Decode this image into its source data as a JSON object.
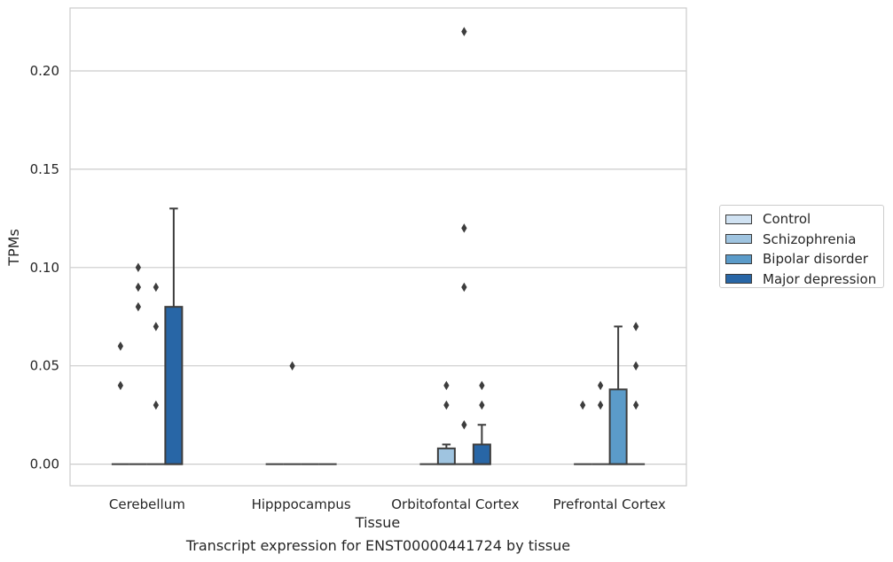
{
  "chart_data": {
    "type": "box",
    "title": "Transcript expression for ENST00000441724 by tissue",
    "xlabel": "Tissue",
    "ylabel": "TPMs",
    "ylim": [
      -0.011,
      0.232
    ],
    "yticks": [
      0.0,
      0.05,
      0.1,
      0.15,
      0.2
    ],
    "ytick_labels": [
      "0.00",
      "0.05",
      "0.10",
      "0.15",
      "0.20"
    ],
    "categories": [
      "Cerebellum",
      "Hipppocampus",
      "Orbitofontal Cortex",
      "Prefrontal Cortex"
    ],
    "grid": true,
    "legend_position": "right, outside plot",
    "series": [
      {
        "name": "Control",
        "color": "#d0e2f2",
        "boxes": [
          {
            "category": "Cerebellum",
            "q1": 0,
            "median": 0,
            "q3": 0,
            "whisker_low": 0,
            "whisker_high": 0,
            "outliers": [
              0.06,
              0.04
            ]
          },
          {
            "category": "Hipppocampus",
            "q1": 0,
            "median": 0,
            "q3": 0,
            "whisker_low": 0,
            "whisker_high": 0,
            "outliers": []
          },
          {
            "category": "Orbitofontal Cortex",
            "q1": 0,
            "median": 0,
            "q3": 0,
            "whisker_low": 0,
            "whisker_high": 0,
            "outliers": []
          },
          {
            "category": "Prefrontal Cortex",
            "q1": 0,
            "median": 0,
            "q3": 0,
            "whisker_low": 0,
            "whisker_high": 0,
            "outliers": [
              0.03
            ]
          }
        ]
      },
      {
        "name": "Schizophrenia",
        "color": "#9fc4e0",
        "boxes": [
          {
            "category": "Cerebellum",
            "q1": 0,
            "median": 0,
            "q3": 0,
            "whisker_low": 0,
            "whisker_high": 0,
            "outliers": [
              0.1,
              0.09,
              0.08
            ]
          },
          {
            "category": "Hipppocampus",
            "q1": 0,
            "median": 0,
            "q3": 0,
            "whisker_low": 0,
            "whisker_high": 0,
            "outliers": [
              0.05
            ]
          },
          {
            "category": "Orbitofontal Cortex",
            "q1": 0,
            "median": 0,
            "q3": 0.008,
            "whisker_low": 0,
            "whisker_high": 0.01,
            "outliers": [
              0.04,
              0.03
            ]
          },
          {
            "category": "Prefrontal Cortex",
            "q1": 0,
            "median": 0,
            "q3": 0,
            "whisker_low": 0,
            "whisker_high": 0,
            "outliers": [
              0.04,
              0.03
            ]
          }
        ]
      },
      {
        "name": "Bipolar disorder",
        "color": "#5b9bc9",
        "boxes": [
          {
            "category": "Cerebellum",
            "q1": 0,
            "median": 0,
            "q3": 0,
            "whisker_low": 0,
            "whisker_high": 0,
            "outliers": [
              0.09,
              0.07,
              0.03
            ]
          },
          {
            "category": "Hipppocampus",
            "q1": 0,
            "median": 0,
            "q3": 0,
            "whisker_low": 0,
            "whisker_high": 0,
            "outliers": []
          },
          {
            "category": "Orbitofontal Cortex",
            "q1": 0,
            "median": 0,
            "q3": 0,
            "whisker_low": 0,
            "whisker_high": 0,
            "outliers": [
              0.22,
              0.12,
              0.09,
              0.02
            ]
          },
          {
            "category": "Prefrontal Cortex",
            "q1": 0,
            "median": 0,
            "q3": 0.038,
            "whisker_low": 0,
            "whisker_high": 0.07,
            "outliers": []
          }
        ]
      },
      {
        "name": "Major depression",
        "color": "#2866a6",
        "boxes": [
          {
            "category": "Cerebellum",
            "q1": 0,
            "median": 0,
            "q3": 0.08,
            "whisker_low": 0,
            "whisker_high": 0.13,
            "outliers": []
          },
          {
            "category": "Hipppocampus",
            "q1": 0,
            "median": 0,
            "q3": 0,
            "whisker_low": 0,
            "whisker_high": 0,
            "outliers": []
          },
          {
            "category": "Orbitofontal Cortex",
            "q1": 0,
            "median": 0,
            "q3": 0.01,
            "whisker_low": 0,
            "whisker_high": 0.02,
            "outliers": [
              0.04,
              0.03
            ]
          },
          {
            "category": "Prefrontal Cortex",
            "q1": 0,
            "median": 0,
            "q3": 0,
            "whisker_low": 0,
            "whisker_high": 0,
            "outliers": [
              0.07,
              0.05,
              0.03
            ]
          }
        ]
      }
    ]
  }
}
